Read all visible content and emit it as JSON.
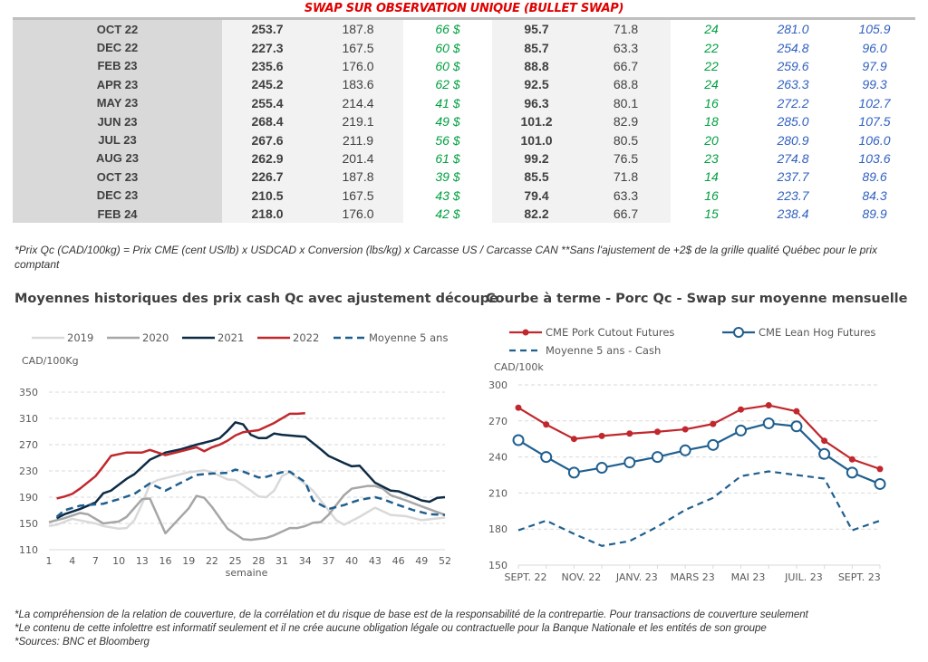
{
  "table": {
    "title": "SWAP SUR OBSERVATION UNIQUE (BULLET SWAP)",
    "rows": [
      [
        "OCT 22",
        "253.7",
        "187.8",
        "66 $",
        "95.7",
        "71.8",
        "24",
        "281.0",
        "105.9"
      ],
      [
        "DEC 22",
        "227.3",
        "167.5",
        "60 $",
        "85.7",
        "63.3",
        "22",
        "254.8",
        "96.0"
      ],
      [
        "FEB 23",
        "235.6",
        "176.0",
        "60 $",
        "88.8",
        "66.7",
        "22",
        "259.6",
        "97.9"
      ],
      [
        "APR 23",
        "245.2",
        "183.6",
        "62 $",
        "92.5",
        "68.8",
        "24",
        "263.3",
        "99.3"
      ],
      [
        "MAY 23",
        "255.4",
        "214.4",
        "41 $",
        "96.3",
        "80.1",
        "16",
        "272.2",
        "102.7"
      ],
      [
        "JUN 23",
        "268.4",
        "219.1",
        "49 $",
        "101.2",
        "82.9",
        "18",
        "285.0",
        "107.5"
      ],
      [
        "JUL 23",
        "267.6",
        "211.9",
        "56 $",
        "101.0",
        "80.5",
        "20",
        "280.9",
        "106.0"
      ],
      [
        "AUG 23",
        "262.9",
        "201.4",
        "61 $",
        "99.2",
        "76.5",
        "23",
        "274.8",
        "103.6"
      ],
      [
        "OCT 23",
        "226.7",
        "187.8",
        "39 $",
        "85.5",
        "71.8",
        "14",
        "237.7",
        "89.6"
      ],
      [
        "DEC 23",
        "210.5",
        "167.5",
        "43 $",
        "79.4",
        "63.3",
        "16",
        "223.7",
        "84.3"
      ],
      [
        "FEB 24",
        "218.0",
        "176.0",
        "42 $",
        "82.2",
        "66.7",
        "15",
        "238.4",
        "89.9"
      ]
    ],
    "note": "*Prix Qc (CAD/100kg) = Prix CME (cent US/lb) x USDCAD x Conversion (lbs/kg) x Carcasse US / Carcasse CAN **Sans l'ajustement de +2$ de la grille qualité Québec pour le prix comptant"
  },
  "chart_data": [
    {
      "type": "line",
      "title": "Moyennes historiques des prix cash Qc avec ajustement découpe",
      "ylabel": "CAD/100Kg",
      "xlabel": "semaine",
      "ylim": [
        110,
        350
      ],
      "yticks": [
        110,
        150,
        190,
        230,
        270,
        310,
        350
      ],
      "xlim": [
        1,
        52
      ],
      "xticks": [
        1,
        4,
        7,
        10,
        13,
        16,
        19,
        22,
        25,
        28,
        31,
        34,
        37,
        40,
        43,
        46,
        49,
        52
      ],
      "grid": true,
      "legend": "top",
      "series": [
        {
          "name": "2019",
          "color": "#d9d9d9",
          "dash": false,
          "points": [
            [
              1,
              146
            ],
            [
              2,
              148
            ],
            [
              4,
              157
            ],
            [
              7,
              150
            ],
            [
              8,
              146
            ],
            [
              10,
              142
            ],
            [
              11,
              143
            ],
            [
              12,
              155
            ],
            [
              13,
              180
            ],
            [
              14,
              210
            ],
            [
              15,
              216
            ],
            [
              19,
              228
            ],
            [
              21,
              231
            ],
            [
              22,
              228
            ],
            [
              24,
              217
            ],
            [
              25,
              216
            ],
            [
              27,
              200
            ],
            [
              28,
              191
            ],
            [
              29,
              190
            ],
            [
              30,
              200
            ],
            [
              31,
              222
            ],
            [
              32,
              228
            ],
            [
              34,
              210
            ],
            [
              35,
              200
            ],
            [
              37,
              170
            ],
            [
              38,
              155
            ],
            [
              39,
              148
            ],
            [
              41,
              160
            ],
            [
              43,
              174
            ],
            [
              45,
              163
            ],
            [
              47,
              161
            ],
            [
              49,
              155
            ],
            [
              52,
              159
            ]
          ]
        },
        {
          "name": "2020",
          "color": "#a6a6a6",
          "dash": false,
          "points": [
            [
              1,
              152
            ],
            [
              3,
              158
            ],
            [
              5,
              166
            ],
            [
              6,
              164
            ],
            [
              8,
              150
            ],
            [
              10,
              153
            ],
            [
              11,
              160
            ],
            [
              13,
              187
            ],
            [
              14,
              188
            ],
            [
              16,
              135
            ],
            [
              19,
              173
            ],
            [
              20,
              192
            ],
            [
              21,
              189
            ],
            [
              22,
              175
            ],
            [
              24,
              142
            ],
            [
              26,
              126
            ],
            [
              27,
              125
            ],
            [
              29,
              128
            ],
            [
              30,
              132
            ],
            [
              32,
              143
            ],
            [
              33,
              143
            ],
            [
              34,
              146
            ],
            [
              35,
              151
            ],
            [
              36,
              152
            ],
            [
              37,
              163
            ],
            [
              39,
              193
            ],
            [
              40,
              203
            ],
            [
              42,
              207
            ],
            [
              43,
              207
            ],
            [
              44,
              203
            ],
            [
              45,
              193
            ],
            [
              47,
              185
            ],
            [
              49,
              176
            ],
            [
              52,
              163
            ]
          ]
        },
        {
          "name": "2021",
          "color": "#0d2b45",
          "dash": false,
          "points": [
            [
              2,
              158
            ],
            [
              3,
              164
            ],
            [
              5,
              172
            ],
            [
              7,
              182
            ],
            [
              8,
              196
            ],
            [
              9,
              200
            ],
            [
              11,
              218
            ],
            [
              12,
              225
            ],
            [
              14,
              247
            ],
            [
              16,
              258
            ],
            [
              18,
              263
            ],
            [
              20,
              270
            ],
            [
              22,
              276
            ],
            [
              23,
              280
            ],
            [
              24,
              291
            ],
            [
              25,
              304
            ],
            [
              26,
              301
            ],
            [
              27,
              285
            ],
            [
              28,
              280
            ],
            [
              29,
              280
            ],
            [
              30,
              287
            ],
            [
              31,
              285
            ],
            [
              33,
              283
            ],
            [
              34,
              282
            ],
            [
              36,
              263
            ],
            [
              37,
              253
            ],
            [
              39,
              242
            ],
            [
              40,
              237
            ],
            [
              41,
              238
            ],
            [
              43,
              212
            ],
            [
              45,
              200
            ],
            [
              46,
              199
            ],
            [
              48,
              190
            ],
            [
              49,
              185
            ],
            [
              50,
              183
            ],
            [
              51,
              189
            ],
            [
              52,
              190
            ]
          ]
        },
        {
          "name": "2022",
          "color": "#c0282d",
          "dash": false,
          "points": [
            [
              2,
              188
            ],
            [
              3,
              191
            ],
            [
              4,
              195
            ],
            [
              5,
              203
            ],
            [
              7,
              222
            ],
            [
              8,
              237
            ],
            [
              9,
              253
            ],
            [
              11,
              258
            ],
            [
              13,
              258
            ],
            [
              14,
              262
            ],
            [
              16,
              254
            ],
            [
              18,
              260
            ],
            [
              20,
              266
            ],
            [
              21,
              260
            ],
            [
              22,
              266
            ],
            [
              23,
              270
            ],
            [
              24,
              276
            ],
            [
              25,
              284
            ],
            [
              26,
              289
            ],
            [
              28,
              292
            ],
            [
              30,
              303
            ],
            [
              32,
              317
            ],
            [
              33,
              317
            ],
            [
              34,
              318
            ]
          ]
        },
        {
          "name": "Moyenne 5 ans",
          "color": "#1f5f8f",
          "dash": true,
          "points": [
            [
              2,
              160
            ],
            [
              3,
              170
            ],
            [
              5,
              177
            ],
            [
              8,
              180
            ],
            [
              10,
              187
            ],
            [
              12,
              195
            ],
            [
              14,
              211
            ],
            [
              16,
              200
            ],
            [
              18,
              212
            ],
            [
              20,
              224
            ],
            [
              22,
              226
            ],
            [
              24,
              227
            ],
            [
              25,
              232
            ],
            [
              26,
              229
            ],
            [
              28,
              220
            ],
            [
              29,
              221
            ],
            [
              31,
              228
            ],
            [
              32,
              229
            ],
            [
              34,
              213
            ],
            [
              35,
              185
            ],
            [
              37,
              172
            ],
            [
              39,
              178
            ],
            [
              41,
              186
            ],
            [
              43,
              190
            ],
            [
              44,
              187
            ],
            [
              46,
              178
            ],
            [
              48,
              170
            ],
            [
              50,
              164
            ],
            [
              52,
              163
            ]
          ]
        }
      ]
    },
    {
      "type": "line",
      "title": "Courbe à terme - Porc Qc - Swap sur moyenne mensuelle",
      "ylabel": "CAD/100k",
      "ylim": [
        150,
        300
      ],
      "yticks": [
        150,
        180,
        210,
        240,
        270,
        300
      ],
      "categories": [
        "SEPT. 22",
        "",
        "NOV. 22",
        "",
        "JANV. 23",
        "",
        "MARS 23",
        "",
        "MAI 23",
        "",
        "JUIL. 23",
        "",
        "SEPT. 23",
        ""
      ],
      "grid": true,
      "legend": "top",
      "series": [
        {
          "name": "CME Pork Cutout Futures",
          "color": "#c0282d",
          "marker": "dot",
          "values": [
            281,
            267,
            255,
            257.5,
            259.5,
            261,
            263,
            267.5,
            279.5,
            283,
            278,
            253.5,
            238,
            230
          ]
        },
        {
          "name": "CME Lean Hog Futures",
          "color": "#1f5f8f",
          "marker": "circle",
          "values": [
            254,
            240,
            227,
            231,
            235.5,
            240,
            245.5,
            250,
            262,
            268,
            265.5,
            242.5,
            227,
            217.5
          ]
        },
        {
          "name": "Moyenne 5 ans - Cash",
          "color": "#1f5f8f",
          "marker": "dash",
          "values": [
            179,
            187,
            176,
            166,
            170,
            182,
            196,
            206,
            224,
            228,
            225,
            222,
            179,
            187
          ]
        }
      ]
    }
  ],
  "footer": [
    "*La compréhension de la relation de couverture, de la corrélation et du risque de base est de la responsabilité de la contrepartie. Pour transactions de couverture seulement",
    "*Le contenu de cette infolettre est informatif seulement et il ne crée aucune obligation légale ou contractuelle pour la Banque Nationale et les entités de son groupe",
    "*Sources: BNC et Bloomberg"
  ]
}
